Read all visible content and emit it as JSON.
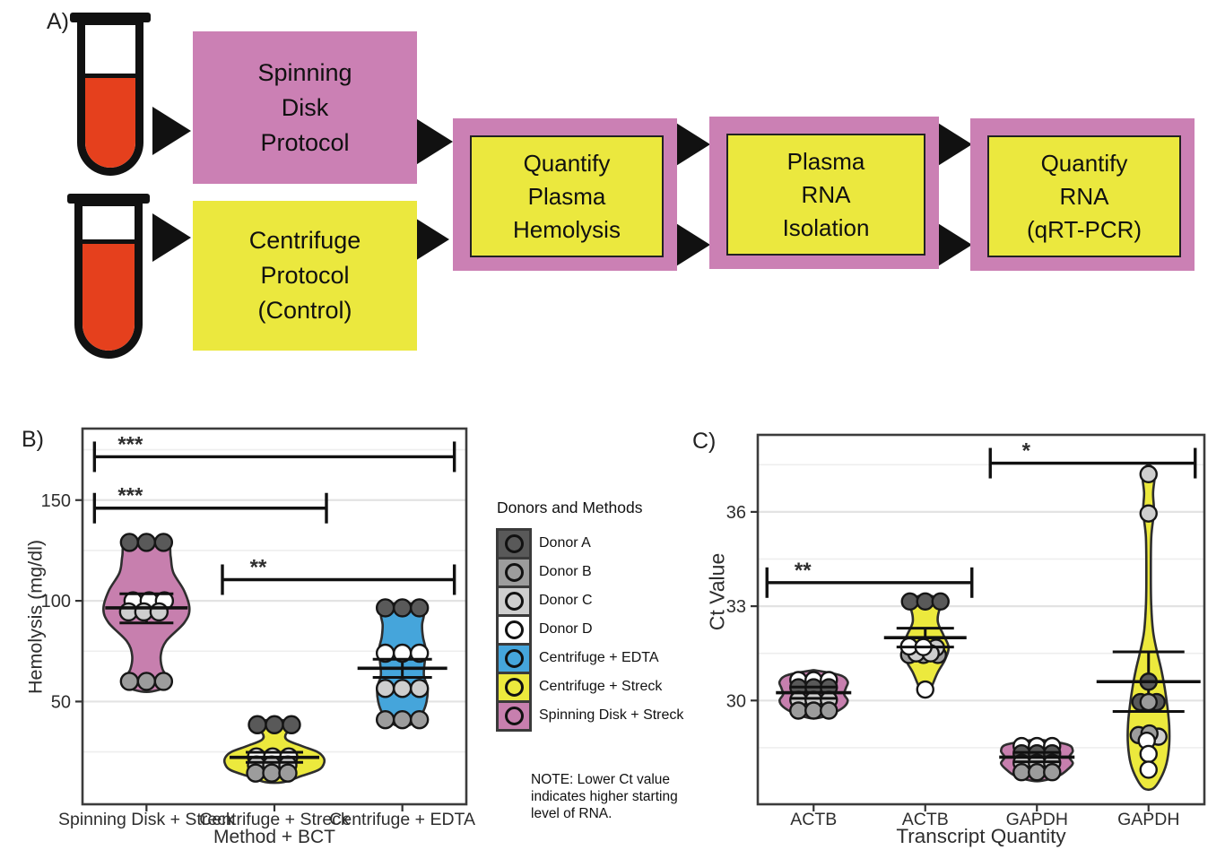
{
  "panel_a": {
    "label": "A)",
    "boxes": [
      {
        "name": "spinning-disk-protocol",
        "text": "Spinning\nDisk\nProtocol",
        "fill": "pink"
      },
      {
        "name": "centrifuge-protocol",
        "text": "Centrifuge\nProtocol\n(Control)",
        "fill": "yellow"
      },
      {
        "name": "quantify-plasma-hemolysis",
        "text": "Quantify\nPlasma\nHemolysis",
        "fill": "framed"
      },
      {
        "name": "plasma-rna-isolation",
        "text": "Plasma\nRNA\nIsolation",
        "fill": "framed"
      },
      {
        "name": "quantify-rna-qrtpcr",
        "text": "Quantify\nRNA\n(qRT-PCR)",
        "fill": "framed"
      }
    ],
    "colors": {
      "pink": "#cb80b4",
      "yellow": "#ebe83e",
      "blood_red": "#e5401d",
      "outline": "#111111"
    }
  },
  "legend": {
    "title": "Donors and Methods",
    "items": [
      {
        "label": "Donor A",
        "color": "#595959"
      },
      {
        "label": "Donor B",
        "color": "#9c9c9c"
      },
      {
        "label": "Donor C",
        "color": "#cecece"
      },
      {
        "label": "Donor D",
        "color": "#ffffff"
      },
      {
        "label": "Centrifuge + EDTA",
        "color": "#45a5db"
      },
      {
        "label": "Centrifuge + Streck",
        "color": "#ece93d"
      },
      {
        "label": "Spinning Disk + Streck",
        "color": "#c77fae"
      }
    ]
  },
  "note": "NOTE: Lower Ct value\nindicates higher starting\nlevel of RNA.",
  "donor_colors": {
    "A": "#595959",
    "B": "#9c9c9c",
    "C": "#cecece",
    "D": "#ffffff"
  },
  "chart_data": [
    {
      "type": "violin",
      "panel_label": "B)",
      "xlabel": "Method + BCT",
      "ylabel": "Hemolysis (mg/dl)",
      "ylim": [
        -1,
        185.5
      ],
      "yticks": [
        50,
        100,
        150
      ],
      "yticks_minor": [
        25,
        75,
        125,
        175
      ],
      "grid": true,
      "point_radius": 9.5,
      "categories": [
        "Spinning Disk + Streck",
        "Centrifuge + Streck",
        "Centrifuge + EDTA"
      ],
      "groups": [
        {
          "category": "Spinning Disk + Streck",
          "fill": "#c77fae",
          "profile": [
            [
              131,
              5
            ],
            [
              129,
              24
            ],
            [
              122,
              27
            ],
            [
              114,
              30
            ],
            [
              105,
              42
            ],
            [
              96,
              48
            ],
            [
              89,
              42
            ],
            [
              80,
              22
            ],
            [
              73,
              16
            ],
            [
              66,
              18
            ],
            [
              61,
              25
            ],
            [
              57,
              20
            ],
            [
              55,
              6
            ]
          ],
          "points": [
            {
              "donor": "A",
              "value": 129,
              "dx": -19
            },
            {
              "donor": "A",
              "value": 129,
              "dx": 0
            },
            {
              "donor": "A",
              "value": 129,
              "dx": 19
            },
            {
              "donor": "D",
              "value": 100,
              "dx": -15
            },
            {
              "donor": "D",
              "value": 100,
              "dx": 3
            },
            {
              "donor": "D",
              "value": 100,
              "dx": 20
            },
            {
              "donor": "C",
              "value": 94.5,
              "dx": -20
            },
            {
              "donor": "C",
              "value": 94.5,
              "dx": -3
            },
            {
              "donor": "C",
              "value": 94.5,
              "dx": 14
            },
            {
              "donor": "B",
              "value": 60,
              "dx": -19
            },
            {
              "donor": "B",
              "value": 60,
              "dx": 0
            },
            {
              "donor": "B",
              "value": 60,
              "dx": 19
            }
          ],
          "mean": 96.5,
          "se_high": 103.5,
          "se_low": 89,
          "mean_halfwidth": 46,
          "cap_halfwidth": 30
        },
        {
          "category": "Centrifuge + Streck",
          "fill": "#ece93d",
          "profile": [
            [
              41,
              5
            ],
            [
              39.5,
              22
            ],
            [
              37,
              22
            ],
            [
              34,
              13
            ],
            [
              31,
              14
            ],
            [
              28,
              30
            ],
            [
              25,
              48
            ],
            [
              22,
              55
            ],
            [
              19,
              55
            ],
            [
              16,
              49
            ],
            [
              13,
              30
            ],
            [
              10,
              10
            ]
          ],
          "points": [
            {
              "donor": "A",
              "value": 38.5,
              "dx": -19
            },
            {
              "donor": "A",
              "value": 38.5,
              "dx": 0
            },
            {
              "donor": "A",
              "value": 38.5,
              "dx": 19
            },
            {
              "donor": "D",
              "value": 22.5,
              "dx": -20
            },
            {
              "donor": "D",
              "value": 22.5,
              "dx": -2
            },
            {
              "donor": "D",
              "value": 22.5,
              "dx": 16
            },
            {
              "donor": "C",
              "value": 18.5,
              "dx": -20
            },
            {
              "donor": "C",
              "value": 18.5,
              "dx": -3
            },
            {
              "donor": "C",
              "value": 18.5,
              "dx": 15
            },
            {
              "donor": "B",
              "value": 14.5,
              "dx": -21
            },
            {
              "donor": "B",
              "value": 14.5,
              "dx": -3
            },
            {
              "donor": "B",
              "value": 14.5,
              "dx": 15
            }
          ],
          "mean": 22.3,
          "se_high": 24.8,
          "se_low": 19.8,
          "mean_halfwidth": 50,
          "cap_halfwidth": 32
        },
        {
          "category": "Centrifuge + EDTA",
          "fill": "#45a5db",
          "profile": [
            [
              99,
              6
            ],
            [
              97,
              22
            ],
            [
              93,
              24
            ],
            [
              88,
              22
            ],
            [
              82,
              23
            ],
            [
              76,
              26
            ],
            [
              70,
              25
            ],
            [
              63,
              24
            ],
            [
              57,
              28
            ],
            [
              50,
              27
            ],
            [
              44,
              22
            ],
            [
              40,
              14
            ],
            [
              38,
              6
            ]
          ],
          "points": [
            {
              "donor": "A",
              "value": 96.5,
              "dx": -19
            },
            {
              "donor": "A",
              "value": 96.5,
              "dx": 0
            },
            {
              "donor": "A",
              "value": 96.5,
              "dx": 19
            },
            {
              "donor": "D",
              "value": 74,
              "dx": -19
            },
            {
              "donor": "D",
              "value": 74,
              "dx": 0
            },
            {
              "donor": "D",
              "value": 74,
              "dx": 19
            },
            {
              "donor": "C",
              "value": 56.5,
              "dx": -19
            },
            {
              "donor": "C",
              "value": 56.5,
              "dx": 0
            },
            {
              "donor": "C",
              "value": 56.5,
              "dx": 19
            },
            {
              "donor": "B",
              "value": 41,
              "dx": -19
            },
            {
              "donor": "B",
              "value": 41,
              "dx": 0
            },
            {
              "donor": "B",
              "value": 41,
              "dx": 19
            }
          ],
          "mean": 66.5,
          "se_high": 71,
          "se_low": 62,
          "mean_halfwidth": 50,
          "cap_halfwidth": 33
        }
      ],
      "significance": [
        {
          "label": "***",
          "from": 0,
          "to": 2,
          "value": 171.5
        },
        {
          "label": "***",
          "from": 0,
          "to": 1,
          "value": 146
        },
        {
          "label": "**",
          "from": 1,
          "to": 2,
          "value": 110.5
        }
      ],
      "sig_pad": 58
    },
    {
      "type": "violin",
      "panel_label": "C)",
      "xlabel": "Transcript Quantity",
      "ylabel": "Ct Value",
      "ylim": [
        26.7,
        38.45
      ],
      "yticks": [
        30,
        33,
        36
      ],
      "yticks_minor": [
        28.5,
        31.5,
        34.5,
        37.5
      ],
      "grid": true,
      "point_radius": 9,
      "categories": [
        "ACTB",
        "ACTB",
        "GAPDH",
        "GAPDH"
      ],
      "groups": [
        {
          "category": "ACTB",
          "fill": "#c77fae",
          "profile": [
            [
              30.95,
              4
            ],
            [
              30.8,
              30
            ],
            [
              30.6,
              38
            ],
            [
              30.4,
              36
            ],
            [
              30.2,
              34
            ],
            [
              30.0,
              38
            ],
            [
              29.8,
              34
            ],
            [
              29.6,
              22
            ],
            [
              29.45,
              6
            ]
          ],
          "points": [
            {
              "donor": "D",
              "value": 30.65,
              "dx": -17
            },
            {
              "donor": "D",
              "value": 30.65,
              "dx": 0
            },
            {
              "donor": "D",
              "value": 30.65,
              "dx": 17
            },
            {
              "donor": "A",
              "value": 30.42,
              "dx": -17
            },
            {
              "donor": "A",
              "value": 30.42,
              "dx": 0
            },
            {
              "donor": "A",
              "value": 30.42,
              "dx": 17
            },
            {
              "donor": "C",
              "value": 30.02,
              "dx": -17
            },
            {
              "donor": "C",
              "value": 30.02,
              "dx": 0
            },
            {
              "donor": "C",
              "value": 30.02,
              "dx": 17
            },
            {
              "donor": "B",
              "value": 29.68,
              "dx": -17
            },
            {
              "donor": "B",
              "value": 29.68,
              "dx": 0
            },
            {
              "donor": "B",
              "value": 29.68,
              "dx": 17
            }
          ],
          "mean": 30.25,
          "se_high": 30.43,
          "se_low": 30.07,
          "mean_halfwidth": 42,
          "cap_halfwidth": 26
        },
        {
          "category": "ACTB",
          "fill": "#ece93d",
          "profile": [
            [
              33.35,
              4
            ],
            [
              33.15,
              22
            ],
            [
              32.9,
              16
            ],
            [
              32.5,
              14
            ],
            [
              32.1,
              20
            ],
            [
              31.7,
              26
            ],
            [
              31.3,
              22
            ],
            [
              30.9,
              14
            ],
            [
              30.5,
              8
            ],
            [
              30.25,
              4
            ]
          ],
          "points": [
            {
              "donor": "A",
              "value": 33.15,
              "dx": -17
            },
            {
              "donor": "A",
              "value": 33.15,
              "dx": 0
            },
            {
              "donor": "A",
              "value": 33.15,
              "dx": 17
            },
            {
              "donor": "B",
              "value": 31.45,
              "dx": -18
            },
            {
              "donor": "B",
              "value": 31.45,
              "dx": -2
            },
            {
              "donor": "B",
              "value": 31.45,
              "dx": 14
            },
            {
              "donor": "C",
              "value": 31.68,
              "dx": 12
            },
            {
              "donor": "C",
              "value": 31.5,
              "dx": -10
            },
            {
              "donor": "C",
              "value": 31.5,
              "dx": 6
            },
            {
              "donor": "D",
              "value": 31.72,
              "dx": -18
            },
            {
              "donor": "D",
              "value": 31.7,
              "dx": -2
            },
            {
              "donor": "D",
              "value": 30.35,
              "dx": 0
            }
          ],
          "mean": 32.0,
          "se_high": 32.3,
          "se_low": 31.7,
          "mean_halfwidth": 46,
          "cap_halfwidth": 32
        },
        {
          "category": "GAPDH",
          "fill": "#c77fae",
          "profile": [
            [
              28.75,
              4
            ],
            [
              28.6,
              34
            ],
            [
              28.4,
              40
            ],
            [
              28.2,
              36
            ],
            [
              28.0,
              40
            ],
            [
              27.8,
              34
            ],
            [
              27.6,
              24
            ],
            [
              27.45,
              6
            ]
          ],
          "points": [
            {
              "donor": "D",
              "value": 28.55,
              "dx": -17
            },
            {
              "donor": "D",
              "value": 28.55,
              "dx": 0
            },
            {
              "donor": "D",
              "value": 28.55,
              "dx": 17
            },
            {
              "donor": "A",
              "value": 28.32,
              "dx": -17
            },
            {
              "donor": "A",
              "value": 28.32,
              "dx": 0
            },
            {
              "donor": "A",
              "value": 28.32,
              "dx": 17
            },
            {
              "donor": "C",
              "value": 28.02,
              "dx": -17
            },
            {
              "donor": "C",
              "value": 28.02,
              "dx": 0
            },
            {
              "donor": "C",
              "value": 28.02,
              "dx": 17
            },
            {
              "donor": "B",
              "value": 27.72,
              "dx": -17
            },
            {
              "donor": "B",
              "value": 27.72,
              "dx": 0
            },
            {
              "donor": "B",
              "value": 27.72,
              "dx": 17
            }
          ],
          "mean": 28.2,
          "se_high": 28.35,
          "se_low": 28.05,
          "mean_halfwidth": 42,
          "cap_halfwidth": 26
        },
        {
          "category": "GAPDH",
          "fill": "#ece93d",
          "profile": [
            [
              37.45,
              3
            ],
            [
              37.2,
              7
            ],
            [
              36.6,
              5
            ],
            [
              36.0,
              6
            ],
            [
              35.2,
              3
            ],
            [
              34.0,
              2.5
            ],
            [
              33.0,
              3
            ],
            [
              32.2,
              5
            ],
            [
              31.6,
              9
            ],
            [
              31.0,
              14
            ],
            [
              30.4,
              18
            ],
            [
              29.8,
              21
            ],
            [
              29.2,
              23
            ],
            [
              28.6,
              23
            ],
            [
              28.0,
              20
            ],
            [
              27.5,
              13
            ],
            [
              27.2,
              5
            ]
          ],
          "points": [
            {
              "donor": "C",
              "value": 37.2,
              "dx": 0
            },
            {
              "donor": "C",
              "value": 35.95,
              "dx": 0
            },
            {
              "donor": "C",
              "value": 28.85,
              "dx": 11
            },
            {
              "donor": "A",
              "value": 30.6,
              "dx": 0
            },
            {
              "donor": "A",
              "value": 29.95,
              "dx": -9
            },
            {
              "donor": "A",
              "value": 29.95,
              "dx": 9
            },
            {
              "donor": "B",
              "value": 28.9,
              "dx": -11
            },
            {
              "donor": "B",
              "value": 28.95,
              "dx": 1
            },
            {
              "donor": "B",
              "value": 29.95,
              "dx": 0
            },
            {
              "donor": "D",
              "value": 28.72,
              "dx": -2
            },
            {
              "donor": "D",
              "value": 28.3,
              "dx": 0
            },
            {
              "donor": "D",
              "value": 27.8,
              "dx": 0
            }
          ],
          "mean": 30.6,
          "se_high": 31.55,
          "se_low": 29.65,
          "mean_halfwidth": 58,
          "cap_halfwidth": 40
        }
      ],
      "significance": [
        {
          "label": "**",
          "from": 0,
          "to": 1,
          "value": 33.75
        },
        {
          "label": "*",
          "from": 2,
          "to": 3,
          "value": 37.55
        }
      ],
      "sig_pad": 52
    }
  ]
}
